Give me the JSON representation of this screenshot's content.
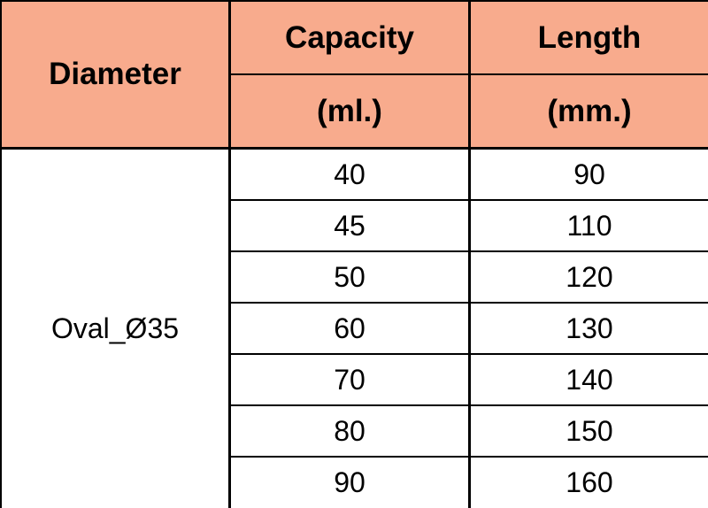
{
  "table": {
    "header": {
      "diameter": "Diameter",
      "capacity": [
        "Capacity",
        "(ml.)"
      ],
      "length": [
        "Length",
        "(mm.)"
      ]
    },
    "diameter": "Oval_Ø35",
    "rows": [
      [
        40,
        90
      ],
      [
        45,
        110
      ],
      [
        50,
        120
      ],
      [
        60,
        130
      ],
      [
        70,
        140
      ],
      [
        80,
        150
      ],
      [
        90,
        160
      ]
    ]
  }
}
